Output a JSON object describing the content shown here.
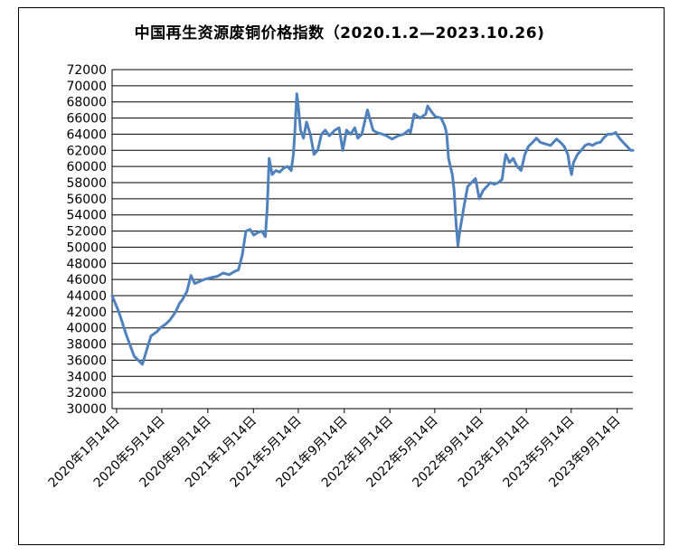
{
  "chart_data": {
    "type": "line",
    "title": "中国再生资源废铜价格指数（2020.1.2—2023.10.26)",
    "xlabel": "",
    "ylabel": "",
    "ylim": [
      30000,
      72000
    ],
    "yticks": [
      30000,
      32000,
      34000,
      36000,
      38000,
      40000,
      42000,
      44000,
      46000,
      48000,
      50000,
      52000,
      54000,
      56000,
      58000,
      60000,
      62000,
      64000,
      66000,
      68000,
      70000,
      72000
    ],
    "xticks": [
      "2020年1月14日",
      "2020年5月14日",
      "2020年9月14日",
      "2021年1月14日",
      "2021年5月14日",
      "2021年9月14日",
      "2022年1月14日",
      "2022年5月14日",
      "2022年9月14日",
      "2023年1月14日",
      "2023年5月14日",
      "2023年9月14日"
    ],
    "xtick_dates": [
      "2020-01-14",
      "2020-05-14",
      "2020-09-14",
      "2021-01-14",
      "2021-05-14",
      "2021-09-14",
      "2022-01-14",
      "2022-05-14",
      "2022-09-14",
      "2023-01-14",
      "2023-05-14",
      "2023-09-14"
    ],
    "xlim": [
      "2020-01-02",
      "2023-10-26"
    ],
    "grid": true,
    "series_color": "#4f81bd",
    "series": [
      {
        "x": [
          "2020-01-02",
          "2020-01-20",
          "2020-02-10",
          "2020-03-01",
          "2020-03-23",
          "2020-04-05",
          "2020-04-15",
          "2020-04-30",
          "2020-05-10",
          "2020-05-25",
          "2020-06-05",
          "2020-06-20",
          "2020-06-30",
          "2020-07-08",
          "2020-07-20",
          "2020-07-31",
          "2020-08-10",
          "2020-08-25",
          "2020-09-05",
          "2020-09-20",
          "2020-10-10",
          "2020-10-25",
          "2020-11-10",
          "2020-11-25",
          "2020-12-05",
          "2020-12-15",
          "2020-12-25",
          "2021-01-05",
          "2021-01-15",
          "2021-01-25",
          "2021-02-05",
          "2021-02-15",
          "2021-02-20",
          "2021-02-25",
          "2021-03-05",
          "2021-03-15",
          "2021-03-25",
          "2021-04-05",
          "2021-04-15",
          "2021-04-25",
          "2021-05-01",
          "2021-05-05",
          "2021-05-10",
          "2021-05-14",
          "2021-05-20",
          "2021-05-28",
          "2021-06-05",
          "2021-06-15",
          "2021-06-25",
          "2021-07-05",
          "2021-07-15",
          "2021-07-25",
          "2021-08-05",
          "2021-08-20",
          "2021-08-31",
          "2021-09-10",
          "2021-09-20",
          "2021-10-01",
          "2021-10-12",
          "2021-10-20",
          "2021-10-31",
          "2021-11-15",
          "2021-11-30",
          "2021-12-10",
          "2021-12-25",
          "2022-01-05",
          "2022-01-20",
          "2022-02-05",
          "2022-02-20",
          "2022-03-05",
          "2022-03-10",
          "2022-03-20",
          "2022-04-05",
          "2022-04-20",
          "2022-04-25",
          "2022-05-05",
          "2022-05-15",
          "2022-05-31",
          "2022-06-10",
          "2022-06-15",
          "2022-06-20",
          "2022-06-30",
          "2022-07-05",
          "2022-07-10",
          "2022-07-15",
          "2022-07-20",
          "2022-07-31",
          "2022-08-10",
          "2022-08-20",
          "2022-08-31",
          "2022-09-10",
          "2022-09-20",
          "2022-09-30",
          "2022-10-10",
          "2022-10-20",
          "2022-10-31",
          "2022-11-10",
          "2022-11-15",
          "2022-11-20",
          "2022-11-30",
          "2022-12-10",
          "2022-12-20",
          "2022-12-31",
          "2023-01-10",
          "2023-01-20",
          "2023-01-31",
          "2023-02-10",
          "2023-02-20",
          "2023-03-05",
          "2023-03-20",
          "2023-04-05",
          "2023-04-15",
          "2023-04-25",
          "2023-05-05",
          "2023-05-10",
          "2023-05-15",
          "2023-05-20",
          "2023-05-31",
          "2023-06-10",
          "2023-06-20",
          "2023-06-30",
          "2023-07-10",
          "2023-07-20",
          "2023-07-31",
          "2023-08-10",
          "2023-08-20",
          "2023-08-31",
          "2023-09-10",
          "2023-09-20",
          "2023-09-30",
          "2023-10-10",
          "2023-10-20",
          "2023-10-26"
        ],
        "y": [
          44000,
          42000,
          39000,
          36500,
          35500,
          37500,
          39000,
          39500,
          40000,
          40500,
          41000,
          42000,
          43000,
          43500,
          44500,
          46500,
          45500,
          45800,
          46000,
          46200,
          46400,
          46800,
          46600,
          47000,
          47200,
          49000,
          52000,
          52200,
          51500,
          51800,
          52000,
          51300,
          55000,
          61000,
          59000,
          59500,
          59300,
          59800,
          60000,
          59500,
          61500,
          64500,
          69000,
          67500,
          64500,
          63500,
          65500,
          64000,
          61500,
          62000,
          64000,
          64500,
          63800,
          64500,
          64800,
          62000,
          64500,
          64000,
          64800,
          63500,
          64000,
          67000,
          64500,
          64200,
          64000,
          63800,
          63400,
          63800,
          64000,
          64500,
          64200,
          66500,
          66000,
          66500,
          67500,
          66800,
          66200,
          66000,
          65000,
          64000,
          61000,
          59000,
          57000,
          53000,
          50200,
          52000,
          55000,
          57500,
          58000,
          58500,
          56000,
          57000,
          57500,
          58000,
          57800,
          58000,
          58400,
          60000,
          61500,
          60500,
          61000,
          60000,
          59500,
          61500,
          62500,
          63000,
          63500,
          63000,
          62800,
          62600,
          63400,
          63000,
          62500,
          61500,
          60000,
          59000,
          60500,
          61500,
          62000,
          62600,
          62800,
          62600,
          62900,
          63000,
          63600,
          64000,
          64000,
          64200,
          63500,
          63000,
          62500,
          62000,
          62000
        ]
      }
    ]
  }
}
